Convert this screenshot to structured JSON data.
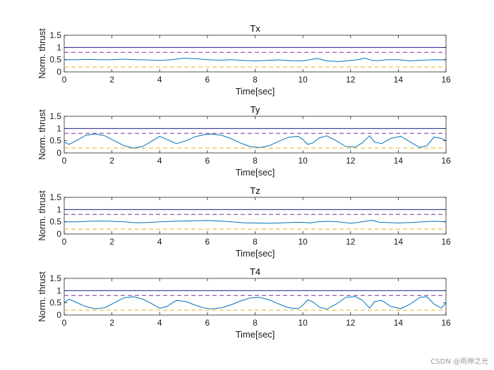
{
  "chart_data": [
    {
      "type": "line",
      "title": "Tx",
      "xlabel": "Time[sec]",
      "ylabel": "Norm. thrust",
      "xlim": [
        0,
        16
      ],
      "ylim": [
        0,
        1.5
      ],
      "xticks": [
        "0",
        "2",
        "4",
        "6",
        "8",
        "10",
        "12",
        "14",
        "16"
      ],
      "yticks": [
        "0",
        "0.5",
        "1",
        "1.5"
      ],
      "grid": false,
      "reference_lines": [
        {
          "y": 1.0,
          "style": "solid",
          "color": "#1f1f8f"
        },
        {
          "y": 0.8,
          "style": "dashed",
          "color": "#7e2f8e"
        },
        {
          "y": 0.2,
          "style": "dashed",
          "color": "#edb120"
        }
      ],
      "series": [
        {
          "color": "#0072bd",
          "x": [
            0,
            0.5,
            1,
            1.5,
            2,
            2.5,
            3,
            3.5,
            4,
            4.5,
            5,
            5.5,
            6,
            6.5,
            7,
            7.5,
            8,
            8.5,
            9,
            9.5,
            10,
            10.3,
            10.6,
            11,
            11.5,
            12,
            12.3,
            12.6,
            12.9,
            13.2,
            13.5,
            14,
            14.5,
            15,
            15.5,
            16
          ],
          "y": [
            0.5,
            0.5,
            0.51,
            0.5,
            0.5,
            0.52,
            0.5,
            0.49,
            0.47,
            0.5,
            0.56,
            0.54,
            0.5,
            0.48,
            0.5,
            0.47,
            0.45,
            0.47,
            0.49,
            0.46,
            0.45,
            0.5,
            0.55,
            0.45,
            0.42,
            0.47,
            0.5,
            0.56,
            0.47,
            0.46,
            0.5,
            0.5,
            0.45,
            0.48,
            0.5,
            0.49
          ]
        }
      ]
    },
    {
      "type": "line",
      "title": "Ty",
      "xlabel": "Time[sec]",
      "ylabel": "Norm. thrust",
      "xlim": [
        0,
        16
      ],
      "ylim": [
        0,
        1.5
      ],
      "xticks": [
        "0",
        "2",
        "4",
        "6",
        "8",
        "10",
        "12",
        "14",
        "16"
      ],
      "yticks": [
        "0",
        "0.5",
        "1",
        "1.5"
      ],
      "grid": false,
      "reference_lines": [
        {
          "y": 1.0,
          "style": "solid",
          "color": "#1f1f8f"
        },
        {
          "y": 0.8,
          "style": "dashed",
          "color": "#7e2f8e"
        },
        {
          "y": 0.2,
          "style": "dashed",
          "color": "#edb120"
        }
      ],
      "series": [
        {
          "color": "#0072bd",
          "x": [
            0,
            0.2,
            0.5,
            0.9,
            1.3,
            1.7,
            2.1,
            2.5,
            2.9,
            3.3,
            3.7,
            4.0,
            4.3,
            4.7,
            5.1,
            5.5,
            5.9,
            6.2,
            6.6,
            7.0,
            7.4,
            7.8,
            8.2,
            8.6,
            9.0,
            9.4,
            9.8,
            10.0,
            10.2,
            10.4,
            10.7,
            11.0,
            11.4,
            11.8,
            12.2,
            12.5,
            12.8,
            13.0,
            13.3,
            13.7,
            14.1,
            14.5,
            14.9,
            15.2,
            15.5,
            15.8,
            16
          ],
          "y": [
            0.45,
            0.35,
            0.5,
            0.72,
            0.78,
            0.7,
            0.5,
            0.3,
            0.2,
            0.27,
            0.5,
            0.68,
            0.55,
            0.38,
            0.5,
            0.67,
            0.75,
            0.77,
            0.72,
            0.58,
            0.4,
            0.26,
            0.22,
            0.3,
            0.48,
            0.64,
            0.68,
            0.55,
            0.35,
            0.4,
            0.62,
            0.7,
            0.5,
            0.26,
            0.24,
            0.42,
            0.7,
            0.45,
            0.38,
            0.6,
            0.68,
            0.45,
            0.22,
            0.3,
            0.65,
            0.6,
            0.5
          ]
        }
      ]
    },
    {
      "type": "line",
      "title": "Tz",
      "xlabel": "Time[sec]",
      "ylabel": "Norm. thrust",
      "xlim": [
        0,
        16
      ],
      "ylim": [
        0,
        1.5
      ],
      "xticks": [
        "0",
        "2",
        "4",
        "6",
        "8",
        "10",
        "12",
        "14",
        "16"
      ],
      "yticks": [
        "0",
        "0.5",
        "1",
        "1.5"
      ],
      "grid": false,
      "reference_lines": [
        {
          "y": 1.0,
          "style": "solid",
          "color": "#1f1f8f"
        },
        {
          "y": 0.8,
          "style": "dashed",
          "color": "#7e2f8e"
        },
        {
          "y": 0.2,
          "style": "dashed",
          "color": "#edb120"
        }
      ],
      "series": [
        {
          "color": "#0072bd",
          "x": [
            0,
            0.5,
            1,
            1.5,
            2,
            2.5,
            3,
            3.5,
            4,
            4.5,
            5,
            5.5,
            6,
            6.5,
            7,
            7.5,
            8,
            8.5,
            9,
            9.5,
            10,
            10.3,
            10.6,
            11,
            11.5,
            12,
            12.3,
            12.6,
            12.9,
            13.2,
            13.5,
            14,
            14.5,
            15,
            15.5,
            16
          ],
          "y": [
            0.5,
            0.5,
            0.52,
            0.53,
            0.52,
            0.5,
            0.46,
            0.47,
            0.5,
            0.52,
            0.53,
            0.54,
            0.55,
            0.53,
            0.5,
            0.46,
            0.45,
            0.44,
            0.45,
            0.47,
            0.48,
            0.45,
            0.5,
            0.52,
            0.5,
            0.44,
            0.47,
            0.52,
            0.56,
            0.48,
            0.47,
            0.45,
            0.47,
            0.5,
            0.52,
            0.5
          ]
        }
      ]
    },
    {
      "type": "line",
      "title": "T4",
      "xlabel": "Time[sec]",
      "ylabel": "Norm. thrust",
      "xlim": [
        0,
        16
      ],
      "ylim": [
        0,
        1.5
      ],
      "xticks": [
        "0",
        "2",
        "4",
        "6",
        "8",
        "10",
        "12",
        "14",
        "16"
      ],
      "yticks": [
        "0",
        "0.5",
        "1",
        "1.5"
      ],
      "grid": false,
      "reference_lines": [
        {
          "y": 1.0,
          "style": "solid",
          "color": "#1f1f8f"
        },
        {
          "y": 0.8,
          "style": "dashed",
          "color": "#7e2f8e"
        },
        {
          "y": 0.2,
          "style": "dashed",
          "color": "#edb120"
        }
      ],
      "series": [
        {
          "color": "#0072bd",
          "x": [
            0,
            0.2,
            0.5,
            0.9,
            1.3,
            1.7,
            2.1,
            2.5,
            2.9,
            3.3,
            3.7,
            4.0,
            4.3,
            4.7,
            5.1,
            5.5,
            5.9,
            6.2,
            6.6,
            7.0,
            7.4,
            7.8,
            8.2,
            8.6,
            9.0,
            9.4,
            9.8,
            10.0,
            10.2,
            10.4,
            10.7,
            11.0,
            11.4,
            11.8,
            12.2,
            12.5,
            12.8,
            13.0,
            13.3,
            13.7,
            14.1,
            14.5,
            14.9,
            15.2,
            15.5,
            15.8,
            16
          ],
          "y": [
            0.5,
            0.65,
            0.52,
            0.35,
            0.25,
            0.3,
            0.5,
            0.7,
            0.75,
            0.65,
            0.45,
            0.27,
            0.35,
            0.6,
            0.55,
            0.4,
            0.28,
            0.25,
            0.3,
            0.42,
            0.58,
            0.7,
            0.72,
            0.62,
            0.45,
            0.3,
            0.26,
            0.4,
            0.62,
            0.55,
            0.32,
            0.24,
            0.45,
            0.72,
            0.76,
            0.6,
            0.28,
            0.55,
            0.6,
            0.35,
            0.26,
            0.45,
            0.72,
            0.75,
            0.45,
            0.28,
            0.5
          ]
        }
      ]
    }
  ],
  "watermark": "CSDN @雨神之光"
}
